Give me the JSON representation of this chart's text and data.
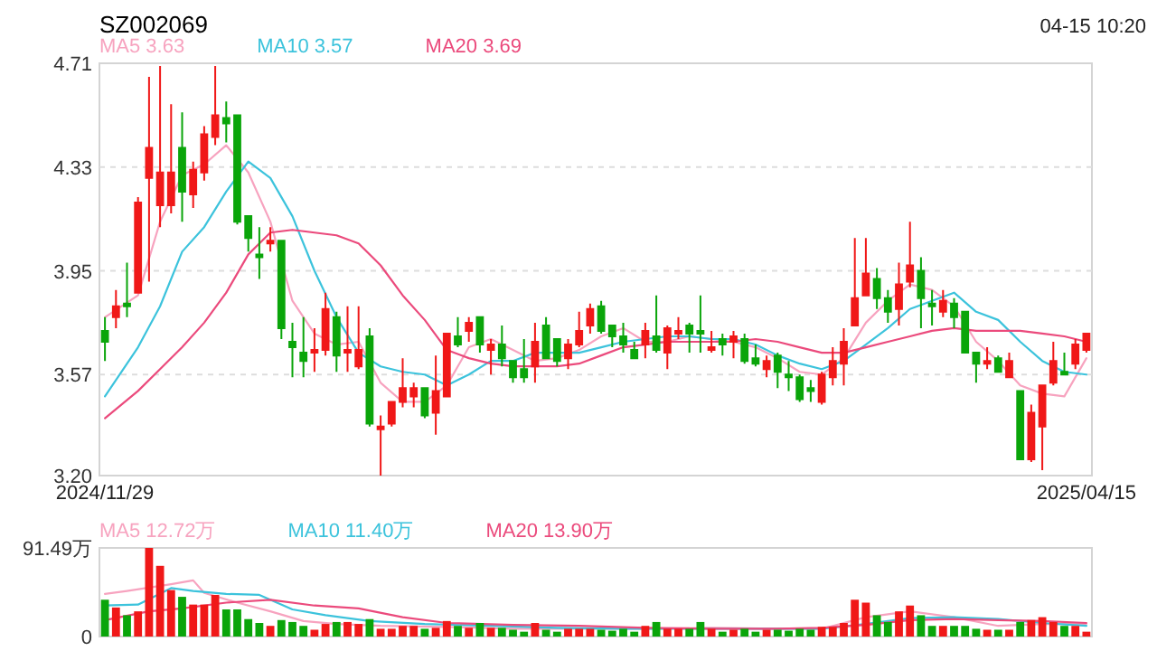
{
  "chart_data": [
    {
      "type": "candlestick",
      "title": "SZ002069",
      "annotations": [
        "04-15 10:20"
      ],
      "categories": [
        "2024/11/29",
        null,
        null,
        null,
        null,
        null,
        null,
        null,
        null,
        null,
        null,
        null,
        null,
        null,
        null,
        null,
        null,
        null,
        null,
        null,
        null,
        null,
        null,
        null,
        null,
        null,
        null,
        null,
        null,
        null,
        null,
        null,
        null,
        null,
        null,
        null,
        null,
        null,
        null,
        null,
        null,
        null,
        null,
        null,
        null,
        null,
        null,
        null,
        null,
        null,
        null,
        null,
        null,
        null,
        null,
        null,
        null,
        null,
        null,
        null,
        null,
        null,
        null,
        null,
        null,
        null,
        null,
        null,
        null,
        null,
        null,
        null,
        null,
        null,
        null,
        null,
        null,
        null,
        null,
        null,
        null,
        null,
        null,
        null,
        null,
        null,
        null,
        null,
        null,
        "2025/04/15"
      ],
      "ohlc": [
        [
          3.73,
          3.78,
          3.62,
          3.69
        ],
        [
          3.78,
          3.88,
          3.74,
          3.82
        ],
        [
          3.83,
          3.98,
          3.78,
          3.82
        ],
        [
          3.87,
          4.22,
          3.87,
          4.2
        ],
        [
          4.29,
          4.66,
          3.91,
          4.4
        ],
        [
          4.19,
          4.7,
          4.11,
          4.31
        ],
        [
          4.19,
          4.56,
          4.16,
          4.31
        ],
        [
          4.4,
          4.53,
          4.13,
          4.24
        ],
        [
          4.23,
          4.35,
          4.18,
          4.32
        ],
        [
          4.31,
          4.48,
          4.28,
          4.45
        ],
        [
          4.44,
          4.7,
          4.41,
          4.52
        ],
        [
          4.51,
          4.57,
          4.42,
          4.49
        ],
        [
          4.52,
          4.52,
          4.12,
          4.13
        ],
        [
          4.15,
          4.15,
          4.02,
          4.07
        ],
        [
          4.01,
          4.11,
          3.92,
          4.0
        ],
        [
          4.05,
          4.11,
          4.02,
          4.06
        ],
        [
          4.06,
          4.06,
          3.7,
          3.74
        ],
        [
          3.69,
          3.76,
          3.56,
          3.67
        ],
        [
          3.65,
          3.78,
          3.56,
          3.62
        ],
        [
          3.65,
          3.74,
          3.58,
          3.66
        ],
        [
          3.66,
          3.87,
          3.64,
          3.81
        ],
        [
          3.78,
          3.8,
          3.58,
          3.64
        ],
        [
          3.65,
          3.82,
          3.58,
          3.66
        ],
        [
          3.6,
          3.82,
          3.59,
          3.66
        ],
        [
          3.71,
          3.74,
          3.38,
          3.39
        ],
        [
          3.37,
          3.42,
          3.2,
          3.38
        ],
        [
          3.39,
          3.47,
          3.38,
          3.47
        ],
        [
          3.47,
          3.63,
          3.45,
          3.52
        ],
        [
          3.49,
          3.54,
          3.45,
          3.52
        ],
        [
          3.52,
          3.52,
          3.41,
          3.42
        ],
        [
          3.43,
          3.64,
          3.35,
          3.51
        ],
        [
          3.49,
          3.72,
          3.49,
          3.72
        ],
        [
          3.71,
          3.78,
          3.67,
          3.68
        ],
        [
          3.73,
          3.78,
          3.69,
          3.76
        ],
        [
          3.78,
          3.78,
          3.65,
          3.68
        ],
        [
          3.66,
          3.7,
          3.57,
          3.68
        ],
        [
          3.68,
          3.75,
          3.6,
          3.63
        ],
        [
          3.62,
          3.62,
          3.54,
          3.56
        ],
        [
          3.59,
          3.7,
          3.54,
          3.56
        ],
        [
          3.6,
          3.76,
          3.54,
          3.69
        ],
        [
          3.75,
          3.78,
          3.63,
          3.63
        ],
        [
          3.7,
          3.7,
          3.6,
          3.62
        ],
        [
          3.63,
          3.7,
          3.59,
          3.68
        ],
        [
          3.68,
          3.8,
          3.67,
          3.73
        ],
        [
          3.75,
          3.83,
          3.72,
          3.81
        ],
        [
          3.82,
          3.84,
          3.72,
          3.73
        ],
        [
          3.75,
          3.75,
          3.67,
          3.71
        ],
        [
          3.71,
          3.76,
          3.65,
          3.68
        ],
        [
          3.66,
          3.69,
          3.63,
          3.63
        ],
        [
          3.68,
          3.76,
          3.63,
          3.73
        ],
        [
          3.71,
          3.86,
          3.65,
          3.66
        ],
        [
          3.65,
          3.75,
          3.59,
          3.74
        ],
        [
          3.72,
          3.78,
          3.7,
          3.73
        ],
        [
          3.75,
          3.76,
          3.65,
          3.72
        ],
        [
          3.73,
          3.86,
          3.65,
          3.72
        ],
        [
          3.66,
          3.73,
          3.65,
          3.67
        ],
        [
          3.7,
          3.72,
          3.64,
          3.68
        ],
        [
          3.69,
          3.73,
          3.63,
          3.71
        ],
        [
          3.7,
          3.72,
          3.61,
          3.62
        ],
        [
          3.63,
          3.68,
          3.6,
          3.61
        ],
        [
          3.59,
          3.64,
          3.56,
          3.62
        ],
        [
          3.64,
          3.65,
          3.52,
          3.58
        ],
        [
          3.57,
          3.62,
          3.51,
          3.56
        ],
        [
          3.56,
          3.57,
          3.47,
          3.48
        ],
        [
          3.52,
          3.55,
          3.47,
          3.51
        ],
        [
          3.47,
          3.58,
          3.46,
          3.57
        ],
        [
          3.56,
          3.67,
          3.53,
          3.62
        ],
        [
          3.61,
          3.74,
          3.53,
          3.69
        ],
        [
          3.75,
          4.07,
          3.75,
          3.85
        ],
        [
          3.86,
          4.07,
          3.86,
          3.94
        ],
        [
          3.92,
          3.96,
          3.81,
          3.85
        ],
        [
          3.85,
          3.88,
          3.76,
          3.8
        ],
        [
          3.81,
          3.98,
          3.75,
          3.9
        ],
        [
          3.91,
          4.13,
          3.89,
          3.97
        ],
        [
          3.95,
          4.0,
          3.74,
          3.85
        ],
        [
          3.83,
          3.88,
          3.75,
          3.82
        ],
        [
          3.8,
          3.88,
          3.78,
          3.84
        ],
        [
          3.83,
          3.85,
          3.74,
          3.78
        ],
        [
          3.8,
          3.8,
          3.65,
          3.65
        ],
        [
          3.65,
          3.65,
          3.54,
          3.61
        ],
        [
          3.61,
          3.67,
          3.59,
          3.62
        ],
        [
          3.63,
          3.64,
          3.58,
          3.58
        ],
        [
          3.56,
          3.65,
          3.56,
          3.62
        ],
        [
          3.51,
          3.51,
          3.26,
          3.26
        ],
        [
          3.26,
          3.46,
          3.25,
          3.43
        ],
        [
          3.38,
          3.53,
          3.22,
          3.53
        ],
        [
          3.54,
          3.69,
          3.53,
          3.62
        ],
        [
          3.58,
          3.65,
          3.57,
          3.57
        ],
        [
          3.61,
          3.7,
          3.59,
          3.68
        ],
        [
          3.66,
          3.72,
          3.65,
          3.72
        ]
      ],
      "colors": [
        "#0aa50a",
        "#f01818",
        "#0aa50a",
        "#f01818",
        "#f01818",
        "#f01818",
        "#f01818",
        "#0aa50a",
        "#f01818",
        "#f01818",
        "#f01818",
        "#0aa50a",
        "#0aa50a",
        "#0aa50a",
        "#0aa50a",
        "#f01818",
        "#0aa50a",
        "#0aa50a",
        "#0aa50a",
        "#f01818",
        "#f01818",
        "#0aa50a",
        "#f01818",
        "#f01818",
        "#0aa50a",
        "#f01818",
        "#f01818",
        "#f01818",
        "#f01818",
        "#0aa50a",
        "#f01818",
        "#f01818",
        "#0aa50a",
        "#f01818",
        "#0aa50a",
        "#f01818",
        "#0aa50a",
        "#0aa50a",
        "#0aa50a",
        "#f01818",
        "#0aa50a",
        "#0aa50a",
        "#f01818",
        "#f01818",
        "#f01818",
        "#0aa50a",
        "#0aa50a",
        "#0aa50a",
        "#0aa50a",
        "#f01818",
        "#0aa50a",
        "#f01818",
        "#f01818",
        "#0aa50a",
        "#0aa50a",
        "#f01818",
        "#0aa50a",
        "#f01818",
        "#0aa50a",
        "#0aa50a",
        "#f01818",
        "#0aa50a",
        "#0aa50a",
        "#0aa50a",
        "#0aa50a",
        "#f01818",
        "#f01818",
        "#f01818",
        "#f01818",
        "#f01818",
        "#0aa50a",
        "#0aa50a",
        "#f01818",
        "#f01818",
        "#0aa50a",
        "#0aa50a",
        "#f01818",
        "#0aa50a",
        "#0aa50a",
        "#0aa50a",
        "#f01818",
        "#0aa50a",
        "#f01818",
        "#0aa50a",
        "#f01818",
        "#f01818",
        "#f01818",
        "#0aa50a",
        "#f01818",
        "#f01818"
      ],
      "ylim": [
        3.2,
        4.71
      ],
      "yticks": [
        {
          "value": 3.2,
          "label": "3.20"
        },
        3.57,
        3.95,
        4.33,
        4.71
      ],
      "grid": "y",
      "legend": "top left",
      "series": [
        {
          "name": "MA5 3.63",
          "color": "#f7a3bf",
          "type": "line",
          "values": [
            3.78,
            null,
            null,
            3.86,
            null,
            4.13,
            null,
            4.3,
            null,
            4.34,
            null,
            4.41,
            null,
            4.31,
            null,
            4.13,
            null,
            3.84,
            null,
            3.72,
            null,
            3.68,
            null,
            3.69,
            null,
            3.54,
            null,
            3.47,
            null,
            3.47,
            null,
            3.53,
            null,
            3.67,
            null,
            3.7,
            null,
            3.66,
            null,
            3.62,
            null,
            3.63,
            null,
            3.66,
            null,
            3.71,
            null,
            3.74,
            null,
            3.69,
            null,
            3.69,
            null,
            3.71,
            null,
            3.7,
            null,
            3.69,
            null,
            3.67,
            null,
            3.63,
            null,
            3.58,
            null,
            3.57,
            null,
            3.63,
            null,
            3.76,
            null,
            3.84,
            null,
            3.9,
            null,
            3.88,
            null,
            3.82,
            null,
            3.69,
            null,
            3.62,
            null,
            3.53,
            null,
            3.5,
            null,
            3.49,
            null,
            3.63
          ]
        },
        {
          "name": "MA10 3.57",
          "color": "#3cc3dc",
          "type": "line",
          "values": [
            3.49,
            null,
            null,
            3.67,
            null,
            3.82,
            null,
            4.02,
            null,
            4.11,
            null,
            4.24,
            null,
            4.35,
            null,
            4.29,
            null,
            4.15,
            null,
            3.95,
            null,
            3.78,
            null,
            3.65,
            null,
            3.6,
            null,
            3.58,
            null,
            3.57,
            null,
            3.53,
            null,
            3.57,
            null,
            3.62,
            null,
            3.62,
            null,
            3.65,
            null,
            3.65,
            null,
            3.65,
            null,
            3.67,
            null,
            3.69,
            null,
            3.7,
            null,
            3.71,
            null,
            3.71,
            null,
            3.7,
            null,
            3.7,
            null,
            3.68,
            null,
            3.64,
            null,
            3.61,
            null,
            3.59,
            null,
            3.62,
            null,
            3.68,
            null,
            3.74,
            null,
            3.81,
            null,
            3.84,
            null,
            3.87,
            null,
            3.8,
            null,
            3.77,
            null,
            3.69,
            null,
            3.62,
            null,
            3.58,
            null,
            3.57
          ]
        },
        {
          "name": "MA20 3.69",
          "color": "#eb4a7c",
          "type": "line",
          "values": [
            3.41,
            null,
            null,
            3.51,
            null,
            3.59,
            null,
            3.67,
            null,
            3.76,
            null,
            3.87,
            null,
            4.01,
            null,
            4.09,
            null,
            4.1,
            null,
            4.09,
            null,
            4.08,
            null,
            4.05,
            null,
            3.97,
            null,
            3.86,
            null,
            3.77,
            null,
            3.66,
            null,
            3.63,
            null,
            3.61,
            null,
            3.6,
            null,
            3.6,
            null,
            3.6,
            null,
            3.61,
            null,
            3.64,
            null,
            3.67,
            null,
            3.68,
            null,
            3.69,
            null,
            3.69,
            null,
            3.69,
            null,
            3.69,
            null,
            3.7,
            null,
            3.69,
            null,
            3.67,
            null,
            3.65,
            null,
            3.65,
            null,
            3.67,
            null,
            3.69,
            null,
            3.71,
            null,
            3.73,
            null,
            3.74,
            null,
            3.73,
            null,
            3.73,
            null,
            3.73,
            null,
            3.72,
            null,
            3.71,
            null,
            3.69
          ]
        }
      ]
    },
    {
      "type": "bar",
      "tick_labels": "y",
      "categories": [
        null,
        null,
        null,
        null,
        null,
        null,
        null,
        null,
        null,
        null,
        null,
        null,
        null,
        null,
        null,
        null,
        null,
        null,
        null,
        null,
        null,
        null,
        null,
        null,
        null,
        null,
        null,
        null,
        null,
        null,
        null,
        null,
        null,
        null,
        null,
        null,
        null,
        null,
        null,
        null,
        null,
        null,
        null,
        null,
        null,
        null,
        null,
        null,
        null,
        null,
        null,
        null,
        null,
        null,
        null,
        null,
        null,
        null,
        null,
        null,
        null,
        null,
        null,
        null,
        null,
        null,
        null,
        null,
        null,
        null,
        null,
        null,
        null,
        null,
        null,
        null,
        null,
        null,
        null,
        null,
        null,
        null,
        null,
        null,
        null,
        null,
        null,
        null,
        null,
        null
      ],
      "values": [
        38,
        30,
        22,
        26,
        91.49,
        73,
        48,
        41,
        33,
        33,
        43,
        28,
        28,
        18,
        14,
        11,
        17,
        15,
        11,
        7,
        13,
        15,
        15,
        13,
        18,
        8,
        8,
        11,
        11,
        8,
        9,
        16,
        11,
        9,
        14,
        9,
        9,
        7,
        5,
        14,
        7,
        5,
        8,
        8,
        8,
        7,
        6,
        8,
        5,
        11,
        15,
        8,
        8,
        8,
        15,
        8,
        5,
        7,
        8,
        5,
        7,
        7,
        6,
        8,
        7,
        10,
        10,
        14,
        38,
        35,
        22,
        15,
        26,
        32,
        22,
        11,
        11,
        11,
        11,
        8,
        7,
        7,
        7,
        15,
        17,
        20,
        15,
        11,
        11,
        5
      ],
      "colors": [
        "#0aa50a",
        "#f01818",
        "#0aa50a",
        "#f01818",
        "#f01818",
        "#f01818",
        "#f01818",
        "#0aa50a",
        "#f01818",
        "#f01818",
        "#f01818",
        "#0aa50a",
        "#0aa50a",
        "#0aa50a",
        "#0aa50a",
        "#f01818",
        "#0aa50a",
        "#0aa50a",
        "#0aa50a",
        "#f01818",
        "#f01818",
        "#0aa50a",
        "#f01818",
        "#f01818",
        "#0aa50a",
        "#f01818",
        "#f01818",
        "#f01818",
        "#f01818",
        "#0aa50a",
        "#f01818",
        "#f01818",
        "#0aa50a",
        "#f01818",
        "#0aa50a",
        "#f01818",
        "#0aa50a",
        "#0aa50a",
        "#0aa50a",
        "#f01818",
        "#0aa50a",
        "#0aa50a",
        "#f01818",
        "#f01818",
        "#f01818",
        "#0aa50a",
        "#0aa50a",
        "#0aa50a",
        "#0aa50a",
        "#f01818",
        "#0aa50a",
        "#f01818",
        "#f01818",
        "#0aa50a",
        "#0aa50a",
        "#f01818",
        "#0aa50a",
        "#f01818",
        "#0aa50a",
        "#0aa50a",
        "#f01818",
        "#0aa50a",
        "#0aa50a",
        "#0aa50a",
        "#0aa50a",
        "#f01818",
        "#f01818",
        "#f01818",
        "#f01818",
        "#f01818",
        "#0aa50a",
        "#0aa50a",
        "#f01818",
        "#f01818",
        "#0aa50a",
        "#0aa50a",
        "#f01818",
        "#0aa50a",
        "#0aa50a",
        "#0aa50a",
        "#f01818",
        "#0aa50a",
        "#f01818",
        "#0aa50a",
        "#f01818",
        "#f01818",
        "#f01818",
        "#0aa50a",
        "#f01818",
        "#f01818"
      ],
      "ylim": [
        0,
        91.49
      ],
      "yticks": [
        0,
        {
          "value": 91.49,
          "label": "91.49万"
        }
      ],
      "legend": "top left",
      "series": [
        {
          "name": "MA5 12.72万",
          "color": "#f7a3bf",
          "type": "line",
          "values": [
            44,
            null,
            47,
            null,
            null,
            null,
            54,
            null,
            58,
            45,
            null,
            null,
            35,
            null,
            null,
            26,
            null,
            null,
            16,
            null,
            null,
            13,
            null,
            null,
            null,
            11,
            null,
            null,
            null,
            null,
            null,
            10,
            null,
            null,
            null,
            null,
            null,
            8,
            null,
            null,
            null,
            null,
            null,
            8,
            null,
            null,
            null,
            null,
            null,
            8,
            null,
            null,
            null,
            null,
            null,
            9,
            null,
            null,
            null,
            null,
            null,
            8,
            null,
            null,
            null,
            8,
            null,
            null,
            null,
            20,
            null,
            null,
            null,
            26,
            null,
            null,
            null,
            20,
            null,
            null,
            null,
            11,
            null,
            null,
            null,
            13,
            null,
            null,
            null,
            13
          ]
        },
        {
          "name": "MA10 11.40万",
          "color": "#3cc3dc",
          "type": "line",
          "values": [
            32,
            null,
            null,
            33,
            null,
            null,
            50,
            null,
            47,
            null,
            null,
            44,
            null,
            null,
            43,
            null,
            null,
            28,
            null,
            null,
            22,
            null,
            null,
            null,
            16,
            null,
            null,
            null,
            null,
            13,
            null,
            null,
            null,
            null,
            null,
            11,
            null,
            null,
            null,
            null,
            null,
            9,
            null,
            null,
            null,
            null,
            null,
            8,
            null,
            null,
            null,
            null,
            null,
            8,
            null,
            null,
            null,
            null,
            null,
            8,
            null,
            null,
            null,
            null,
            null,
            8,
            null,
            null,
            null,
            13,
            null,
            null,
            null,
            19,
            null,
            null,
            null,
            20,
            null,
            null,
            null,
            18,
            null,
            null,
            null,
            14,
            null,
            null,
            null,
            11
          ]
        },
        {
          "name": "MA20 13.90万",
          "color": "#eb4a7c",
          "type": "line",
          "values": [
            17,
            null,
            null,
            null,
            26,
            null,
            null,
            29,
            null,
            null,
            null,
            35,
            null,
            null,
            null,
            38,
            null,
            null,
            null,
            32,
            null,
            null,
            null,
            29,
            null,
            null,
            null,
            20,
            null,
            null,
            null,
            14,
            null,
            null,
            null,
            null,
            null,
            12,
            null,
            null,
            null,
            null,
            null,
            11,
            null,
            null,
            null,
            null,
            null,
            9,
            null,
            null,
            null,
            null,
            null,
            8,
            null,
            null,
            null,
            null,
            null,
            8,
            null,
            null,
            null,
            9,
            null,
            null,
            null,
            12,
            null,
            null,
            null,
            17,
            null,
            null,
            null,
            18,
            null,
            null,
            null,
            17,
            null,
            null,
            null,
            16,
            null,
            null,
            null,
            14
          ]
        }
      ]
    }
  ]
}
